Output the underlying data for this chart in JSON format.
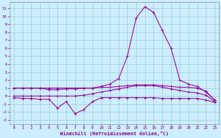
{
  "xlabel": "Windchill (Refroidissement éolien,°C)",
  "background_color": "#cceeff",
  "grid_color": "#99cccc",
  "line_color": "#990099",
  "x_ticks": [
    0,
    1,
    2,
    3,
    4,
    5,
    6,
    7,
    8,
    9,
    10,
    11,
    12,
    13,
    14,
    15,
    16,
    17,
    18,
    19,
    20,
    21,
    22,
    23
  ],
  "y_ticks": [
    -3,
    -2,
    -1,
    0,
    1,
    2,
    3,
    4,
    5,
    6,
    7,
    8,
    9,
    10,
    11
  ],
  "ylim": [
    -3.5,
    11.8
  ],
  "xlim": [
    -0.5,
    23.5
  ],
  "line1_y": [
    1.0,
    1.0,
    1.0,
    1.0,
    0.8,
    0.8,
    0.9,
    0.9,
    1.0,
    1.0,
    1.2,
    1.5,
    2.2,
    5.0,
    9.8,
    11.2,
    10.5,
    8.2,
    6.0,
    2.0,
    1.5,
    1.2,
    0.5,
    -0.5
  ],
  "line2_y": [
    1.0,
    1.0,
    1.0,
    1.0,
    1.0,
    1.0,
    1.0,
    1.0,
    1.0,
    1.0,
    1.1,
    1.1,
    1.2,
    1.3,
    1.4,
    1.4,
    1.4,
    1.3,
    1.2,
    1.1,
    1.1,
    1.0,
    0.6,
    -0.5
  ],
  "line3_y": [
    -0.2,
    -0.3,
    -0.3,
    -0.4,
    -0.4,
    -1.5,
    -0.7,
    -2.2,
    -1.7,
    -0.7,
    -0.2,
    -0.2,
    -0.2,
    -0.2,
    -0.2,
    -0.2,
    -0.2,
    -0.3,
    -0.3,
    -0.3,
    -0.3,
    -0.3,
    -0.5,
    -0.8
  ],
  "line4_y": [
    0.0,
    0.0,
    0.0,
    0.0,
    0.0,
    0.0,
    0.0,
    0.0,
    0.1,
    0.3,
    0.5,
    0.7,
    0.9,
    1.1,
    1.3,
    1.3,
    1.3,
    1.1,
    0.9,
    0.7,
    0.5,
    0.4,
    0.1,
    -0.7
  ]
}
